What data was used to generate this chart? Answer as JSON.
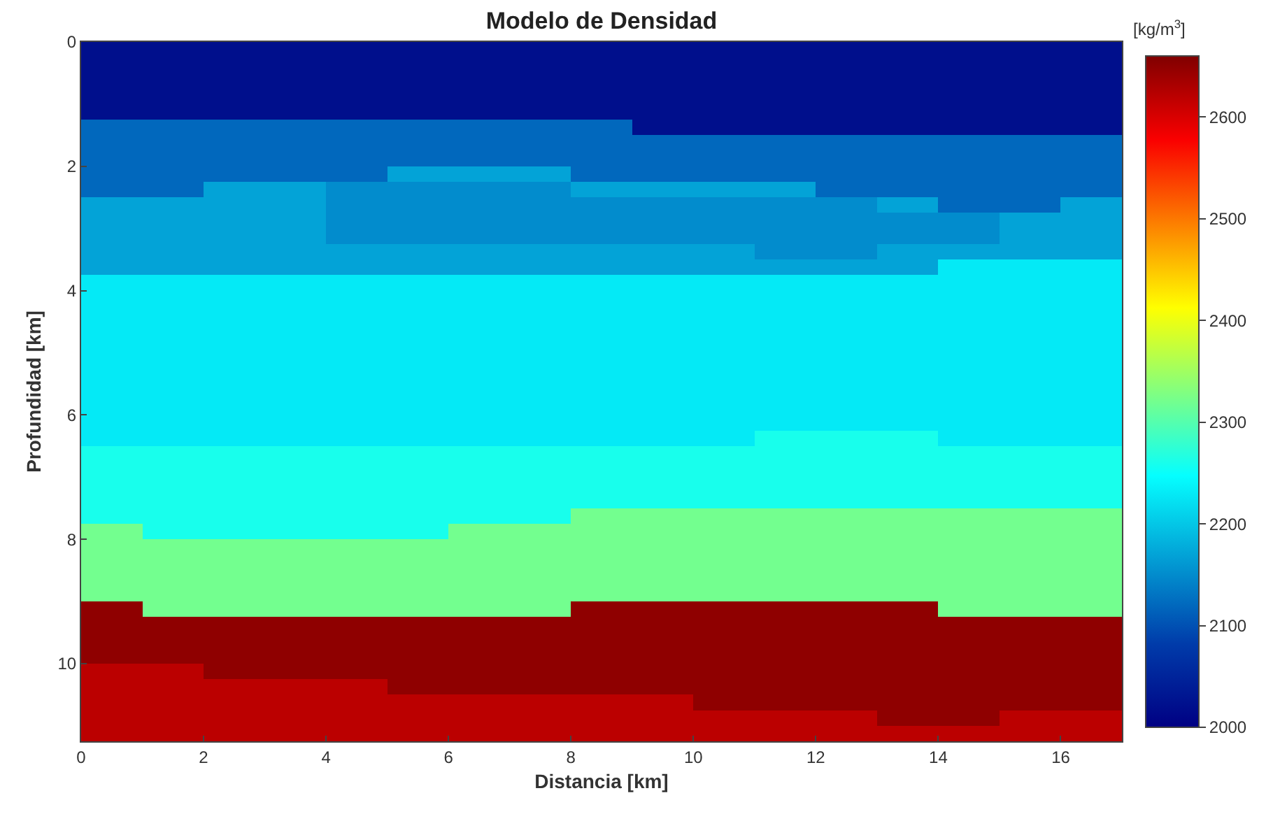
{
  "chart_data": {
    "type": "heatmap",
    "title": "Modelo de Densidad",
    "xlabel": "Distancia [km]",
    "ylabel": "Profundidad [km]",
    "clabel": "[kg/m$^{3}$]",
    "xlim": [
      0,
      17
    ],
    "xticks": [
      0,
      2,
      4,
      6,
      8,
      10,
      12,
      14,
      16
    ],
    "ylim": [
      11.25,
      0
    ],
    "yticks": [
      0,
      2,
      4,
      6,
      8,
      10
    ],
    "clim": [
      2000,
      2660
    ],
    "cticks": [
      2000,
      2100,
      2200,
      2300,
      2400,
      2500,
      2600
    ],
    "cells": [
      [
        2020,
        2020,
        2020,
        2020,
        2020,
        2020,
        2020,
        2020,
        2020,
        2020,
        2020,
        2020,
        2020,
        2020,
        2020,
        2020,
        2020
      ],
      [
        2020,
        2020,
        2020,
        2020,
        2020,
        2020,
        2020,
        2020,
        2020,
        2020,
        2020,
        2020,
        2020,
        2020,
        2020,
        2020,
        2020
      ],
      [
        2020,
        2020,
        2020,
        2020,
        2020,
        2020,
        2020,
        2020,
        2020,
        2020,
        2020,
        2020,
        2020,
        2020,
        2020,
        2020,
        2020
      ],
      [
        2020,
        2020,
        2020,
        2020,
        2020,
        2020,
        2020,
        2020,
        2020,
        2020,
        2020,
        2020,
        2020,
        2020,
        2020,
        2020,
        2020
      ],
      [
        2020,
        2020,
        2020,
        2020,
        2020,
        2020,
        2020,
        2020,
        2020,
        2020,
        2020,
        2020,
        2020,
        2020,
        2020,
        2020,
        2020
      ],
      [
        2120,
        2120,
        2120,
        2120,
        2120,
        2120,
        2120,
        2120,
        2120,
        2020,
        2020,
        2020,
        2020,
        2020,
        2020,
        2020,
        2020
      ],
      [
        2120,
        2120,
        2120,
        2120,
        2120,
        2120,
        2120,
        2120,
        2120,
        2120,
        2120,
        2120,
        2120,
        2120,
        2120,
        2120,
        2120
      ],
      [
        2120,
        2120,
        2120,
        2120,
        2120,
        2120,
        2120,
        2120,
        2120,
        2120,
        2120,
        2120,
        2120,
        2120,
        2120,
        2120,
        2120
      ],
      [
        2120,
        2120,
        2120,
        2120,
        2120,
        2170,
        2170,
        2170,
        2120,
        2120,
        2120,
        2120,
        2120,
        2120,
        2120,
        2120,
        2120
      ],
      [
        2120,
        2120,
        2170,
        2170,
        2150,
        2150,
        2150,
        2150,
        2170,
        2170,
        2170,
        2170,
        2120,
        2120,
        2120,
        2120,
        2120
      ],
      [
        2170,
        2170,
        2170,
        2170,
        2150,
        2150,
        2150,
        2150,
        2150,
        2150,
        2150,
        2150,
        2150,
        2170,
        2120,
        2120,
        2170
      ],
      [
        2170,
        2170,
        2170,
        2170,
        2150,
        2150,
        2150,
        2150,
        2150,
        2150,
        2150,
        2150,
        2150,
        2150,
        2150,
        2170,
        2170
      ],
      [
        2170,
        2170,
        2170,
        2170,
        2150,
        2150,
        2150,
        2150,
        2150,
        2150,
        2150,
        2150,
        2150,
        2150,
        2150,
        2170,
        2170
      ],
      [
        2170,
        2170,
        2170,
        2170,
        2170,
        2170,
        2170,
        2170,
        2170,
        2170,
        2170,
        2150,
        2150,
        2170,
        2170,
        2170,
        2170
      ],
      [
        2170,
        2170,
        2170,
        2170,
        2170,
        2170,
        2170,
        2170,
        2170,
        2170,
        2170,
        2170,
        2170,
        2170,
        2230,
        2230,
        2230
      ],
      [
        2230,
        2230,
        2230,
        2230,
        2230,
        2230,
        2230,
        2230,
        2230,
        2230,
        2230,
        2230,
        2230,
        2230,
        2230,
        2230,
        2230
      ],
      [
        2230,
        2230,
        2230,
        2230,
        2230,
        2230,
        2230,
        2230,
        2230,
        2230,
        2230,
        2230,
        2230,
        2230,
        2230,
        2230,
        2230
      ],
      [
        2230,
        2230,
        2230,
        2230,
        2230,
        2230,
        2230,
        2230,
        2230,
        2230,
        2230,
        2230,
        2230,
        2230,
        2230,
        2230,
        2230
      ],
      [
        2230,
        2230,
        2230,
        2230,
        2230,
        2230,
        2230,
        2230,
        2230,
        2230,
        2230,
        2230,
        2230,
        2230,
        2230,
        2230,
        2230
      ],
      [
        2230,
        2230,
        2230,
        2230,
        2230,
        2230,
        2230,
        2230,
        2230,
        2230,
        2230,
        2230,
        2230,
        2230,
        2230,
        2230,
        2230
      ],
      [
        2230,
        2230,
        2230,
        2230,
        2230,
        2230,
        2230,
        2230,
        2230,
        2230,
        2230,
        2230,
        2230,
        2230,
        2230,
        2230,
        2230
      ],
      [
        2230,
        2230,
        2230,
        2230,
        2230,
        2230,
        2230,
        2230,
        2230,
        2230,
        2230,
        2230,
        2230,
        2230,
        2230,
        2230,
        2230
      ],
      [
        2230,
        2230,
        2230,
        2230,
        2230,
        2230,
        2230,
        2230,
        2230,
        2230,
        2230,
        2230,
        2230,
        2230,
        2230,
        2230,
        2230
      ],
      [
        2230,
        2230,
        2230,
        2230,
        2230,
        2230,
        2230,
        2230,
        2230,
        2230,
        2230,
        2230,
        2230,
        2230,
        2230,
        2230,
        2230
      ],
      [
        2230,
        2230,
        2230,
        2230,
        2230,
        2230,
        2230,
        2230,
        2230,
        2230,
        2230,
        2230,
        2230,
        2230,
        2230,
        2230,
        2230
      ],
      [
        2230,
        2230,
        2230,
        2230,
        2230,
        2230,
        2230,
        2230,
        2230,
        2230,
        2230,
        2260,
        2260,
        2260,
        2230,
        2230,
        2230
      ],
      [
        2260,
        2260,
        2260,
        2260,
        2260,
        2260,
        2260,
        2260,
        2260,
        2260,
        2260,
        2260,
        2260,
        2260,
        2260,
        2260,
        2260
      ],
      [
        2260,
        2260,
        2260,
        2260,
        2260,
        2260,
        2260,
        2260,
        2260,
        2260,
        2260,
        2260,
        2260,
        2260,
        2260,
        2260,
        2260
      ],
      [
        2260,
        2260,
        2260,
        2260,
        2260,
        2260,
        2260,
        2260,
        2260,
        2260,
        2260,
        2260,
        2260,
        2260,
        2260,
        2260,
        2260
      ],
      [
        2260,
        2260,
        2260,
        2260,
        2260,
        2260,
        2260,
        2260,
        2260,
        2260,
        2260,
        2260,
        2260,
        2260,
        2260,
        2260,
        2260
      ],
      [
        2260,
        2260,
        2260,
        2260,
        2260,
        2260,
        2260,
        2260,
        2320,
        2320,
        2320,
        2320,
        2320,
        2320,
        2320,
        2320,
        2320
      ],
      [
        2320,
        2260,
        2260,
        2260,
        2260,
        2260,
        2320,
        2320,
        2320,
        2320,
        2320,
        2320,
        2320,
        2320,
        2320,
        2320,
        2320
      ],
      [
        2320,
        2320,
        2320,
        2320,
        2320,
        2320,
        2320,
        2320,
        2320,
        2320,
        2320,
        2320,
        2320,
        2320,
        2320,
        2320,
        2320
      ],
      [
        2320,
        2320,
        2320,
        2320,
        2320,
        2320,
        2320,
        2320,
        2320,
        2320,
        2320,
        2320,
        2320,
        2320,
        2320,
        2320,
        2320
      ],
      [
        2320,
        2320,
        2320,
        2320,
        2320,
        2320,
        2320,
        2320,
        2320,
        2320,
        2320,
        2320,
        2320,
        2320,
        2320,
        2320,
        2320
      ],
      [
        2320,
        2320,
        2320,
        2320,
        2320,
        2320,
        2320,
        2320,
        2320,
        2320,
        2320,
        2320,
        2320,
        2320,
        2320,
        2320,
        2320
      ],
      [
        2650,
        2320,
        2320,
        2320,
        2320,
        2320,
        2320,
        2320,
        2650,
        2650,
        2650,
        2650,
        2650,
        2650,
        2320,
        2320,
        2320
      ],
      [
        2650,
        2650,
        2650,
        2650,
        2650,
        2650,
        2650,
        2650,
        2650,
        2650,
        2650,
        2650,
        2650,
        2650,
        2650,
        2650,
        2650
      ],
      [
        2650,
        2650,
        2650,
        2650,
        2650,
        2650,
        2650,
        2650,
        2650,
        2650,
        2650,
        2650,
        2650,
        2650,
        2650,
        2650,
        2650
      ],
      [
        2650,
        2650,
        2650,
        2650,
        2650,
        2650,
        2650,
        2650,
        2650,
        2650,
        2650,
        2650,
        2650,
        2650,
        2650,
        2650,
        2650
      ],
      [
        2620,
        2620,
        2650,
        2650,
        2650,
        2650,
        2650,
        2650,
        2650,
        2650,
        2650,
        2650,
        2650,
        2650,
        2650,
        2650,
        2650
      ],
      [
        2620,
        2620,
        2620,
        2620,
        2620,
        2650,
        2650,
        2650,
        2650,
        2650,
        2650,
        2650,
        2650,
        2650,
        2650,
        2650,
        2650
      ],
      [
        2620,
        2620,
        2620,
        2620,
        2620,
        2620,
        2620,
        2620,
        2620,
        2620,
        2650,
        2650,
        2650,
        2650,
        2650,
        2650,
        2650
      ],
      [
        2620,
        2620,
        2620,
        2620,
        2620,
        2620,
        2620,
        2620,
        2620,
        2620,
        2620,
        2620,
        2620,
        2650,
        2650,
        2620,
        2620
      ],
      [
        2620,
        2620,
        2620,
        2620,
        2620,
        2620,
        2620,
        2620,
        2620,
        2620,
        2620,
        2620,
        2620,
        2620,
        2620,
        2620,
        2620
      ]
    ]
  }
}
